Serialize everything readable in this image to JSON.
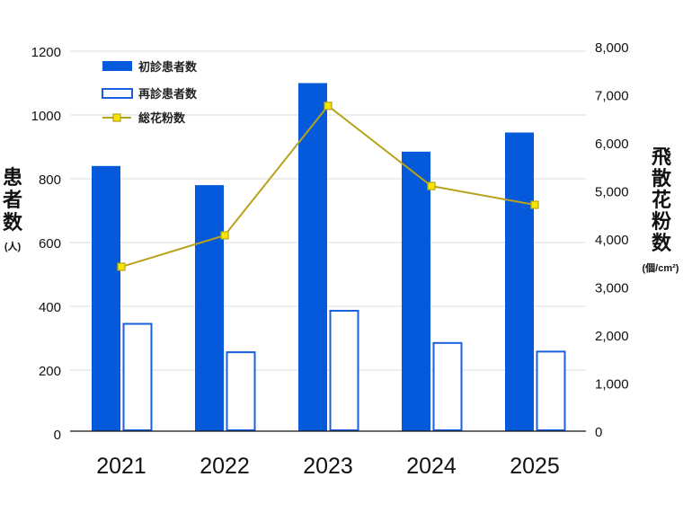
{
  "chart_data": {
    "type": "bar",
    "categories": [
      "2021",
      "2022",
      "2023",
      "2024",
      "2025"
    ],
    "series": [
      {
        "name": "初診患者数",
        "kind": "bar",
        "axis": "left",
        "style": "filled",
        "color": "#0559DB",
        "values": [
          840,
          780,
          1100,
          885,
          945
        ]
      },
      {
        "name": "再診患者数",
        "kind": "bar",
        "axis": "left",
        "style": "outline",
        "color": "#1A5FE0",
        "values": [
          345,
          256,
          386,
          285,
          258
        ]
      },
      {
        "name": "総花粉数",
        "kind": "line",
        "axis": "right",
        "color": "#B8A21A",
        "marker_color": "#F5E600",
        "values": [
          3420,
          4075,
          6770,
          5100,
          4710
        ]
      }
    ],
    "left_axis": {
      "title_chars": [
        "患",
        "者",
        "数"
      ],
      "unit": "(人)",
      "ylim": [
        0,
        1200
      ],
      "ticks": [
        "0",
        "200",
        "400",
        "600",
        "800",
        "1000",
        "1200"
      ]
    },
    "right_axis": {
      "title_chars": [
        "飛",
        "散",
        "花",
        "粉",
        "数"
      ],
      "unit": "(個/cm²)",
      "ylim": [
        0,
        8000
      ],
      "ticks": [
        "0",
        "1,000",
        "2,000",
        "3,000",
        "4,000",
        "5,000",
        "6,000",
        "7,000",
        "8,000"
      ]
    },
    "grid": true,
    "legend_position": "top-left"
  }
}
